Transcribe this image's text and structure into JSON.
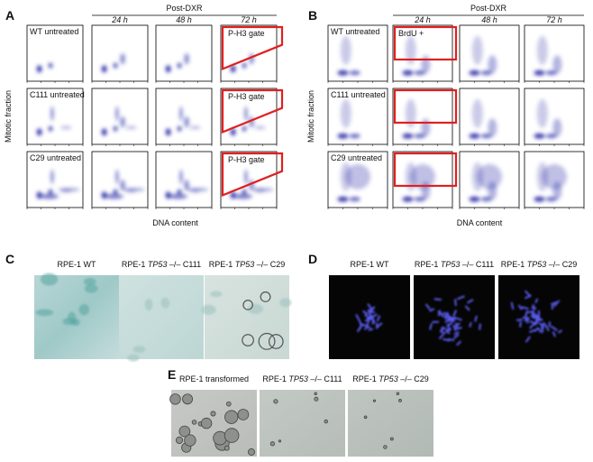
{
  "panel_a": {
    "letter": "A",
    "header": "Post-DXR",
    "timepoints": [
      "24 h",
      "48 h",
      "72 h"
    ],
    "y_label": "Mitotic fraction",
    "x_label": "DNA content",
    "rows": [
      "WT untreated",
      "C111 untreated",
      "C29 untreated"
    ],
    "gate_labels": [
      "P-H3 gate",
      "P-H3 gate",
      "P-H3 gate"
    ]
  },
  "panel_b": {
    "letter": "B",
    "header": "Post-DXR",
    "timepoints": [
      "24 h",
      "48 h",
      "72 h"
    ],
    "y_label": "Mitotic fraction",
    "x_label": "DNA content",
    "rows": [
      "WT untreated",
      "C111 untreated",
      "C29 untreated"
    ],
    "gate_label": "BrdU +"
  },
  "panel_c": {
    "letter": "C",
    "images": [
      {
        "prefix": "RPE-1 WT"
      },
      {
        "prefix": "RPE-1 ",
        "gene": "TP53",
        "suffix": " –/– C111"
      },
      {
        "prefix": "RPE-1 ",
        "gene": "TP53",
        "suffix": " –/– C29"
      }
    ]
  },
  "panel_d": {
    "letter": "D",
    "images": [
      {
        "prefix": "RPE-1 WT"
      },
      {
        "prefix": "RPE-1 ",
        "gene": "TP53",
        "suffix": " –/– C111"
      },
      {
        "prefix": "RPE-1 ",
        "gene": "TP53",
        "suffix": " –/– C29"
      }
    ]
  },
  "panel_e": {
    "letter": "E",
    "images": [
      {
        "prefix": "RPE-1 transformed"
      },
      {
        "prefix": "RPE-1 ",
        "gene": "TP53",
        "suffix": " –/– C111"
      },
      {
        "prefix": "RPE-1 ",
        "gene": "TP53",
        "suffix": " –/– C29"
      }
    ]
  }
}
